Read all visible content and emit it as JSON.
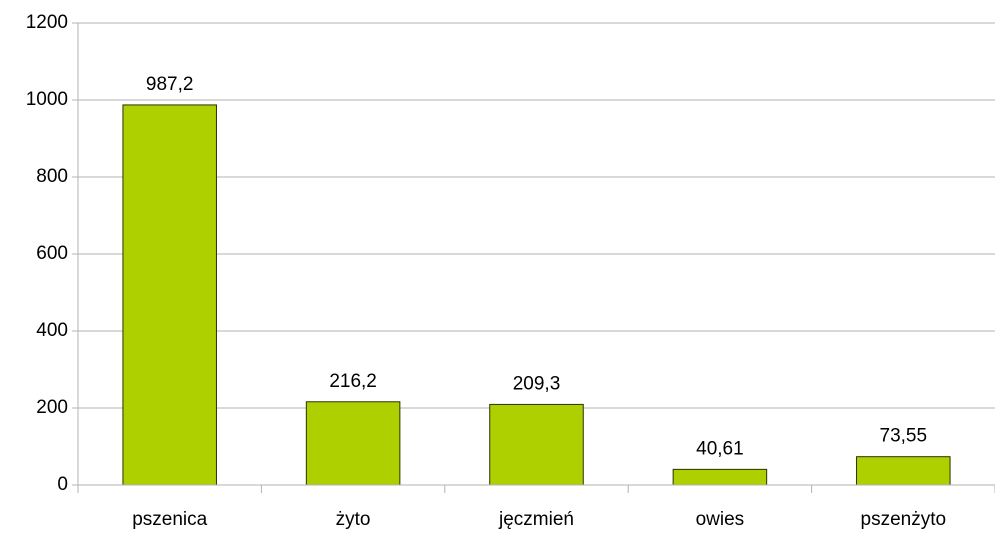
{
  "chart_data": {
    "type": "bar",
    "categories": [
      "pszenica",
      "żyto",
      "jęczmień",
      "owies",
      "pszenżyto"
    ],
    "values": [
      987.2,
      216.2,
      209.3,
      40.61,
      73.55
    ],
    "value_labels": [
      "987,2",
      "216,2",
      "209,3",
      "40,61",
      "73,55"
    ],
    "color": "#aecf00",
    "ylim": [
      0,
      1200
    ],
    "yticks": [
      0,
      200,
      400,
      600,
      800,
      1000,
      1200
    ],
    "grid": true
  }
}
